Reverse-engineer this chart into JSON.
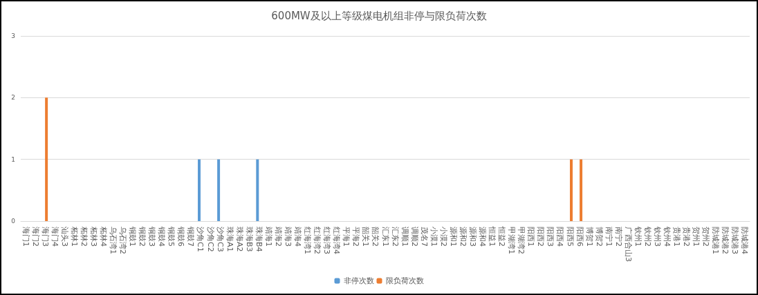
{
  "chart_data": {
    "type": "bar",
    "title": "600MW及以上等级煤电机组非停与限负荷次数",
    "categories": [
      "海门1",
      "海门2",
      "海门3",
      "海门4",
      "汕头3",
      "柘林1",
      "柘林2",
      "柘林3",
      "柘林4",
      "乌石湾1",
      "乌石湾2",
      "铜鼓1",
      "铜鼓2",
      "铜鼓3",
      "铜鼓4",
      "铜鼓5",
      "铜鼓6",
      "铜鼓7",
      "沙角C1",
      "沙角C2",
      "沙角C3",
      "珠海A1",
      "珠海A2",
      "珠海B3",
      "珠海B4",
      "靖海1",
      "靖海2",
      "靖海3",
      "靖海4",
      "红海湾1",
      "红海湾2",
      "红海湾3",
      "红海湾4",
      "平海1",
      "平海2",
      "韶关1",
      "韶关2",
      "汇东1",
      "汇东2",
      "调顺1",
      "调顺2",
      "茂名7",
      "小漠1",
      "小漠2",
      "源和1",
      "源和2",
      "源和3",
      "源和4",
      "恒益1",
      "恒益2",
      "甲湖湾1",
      "甲湖湾2",
      "阳西1",
      "阳西2",
      "阳西3",
      "阳西4",
      "阳西5",
      "阳西6",
      "博贺1",
      "博贺2",
      "南宁1",
      "南宁2",
      "广西合山3",
      "钦州1",
      "钦州2",
      "钦州3",
      "钦州4",
      "贵港1",
      "贵港2",
      "贺州1",
      "贺州2",
      "防城港1",
      "防城港2",
      "防城港3",
      "防城港4"
    ],
    "series": [
      {
        "name": "非停次数",
        "color": "#5b9bd5",
        "values": [
          0,
          0,
          0,
          0,
          0,
          0,
          0,
          0,
          0,
          0,
          0,
          0,
          0,
          0,
          0,
          0,
          0,
          0,
          1,
          0,
          1,
          0,
          0,
          0,
          1,
          0,
          0,
          0,
          0,
          0,
          0,
          0,
          0,
          0,
          0,
          0,
          0,
          0,
          0,
          0,
          0,
          0,
          0,
          0,
          0,
          0,
          0,
          0,
          0,
          0,
          0,
          0,
          0,
          0,
          0,
          0,
          0,
          0,
          0,
          0,
          0,
          0,
          0,
          0,
          0,
          0,
          0,
          0,
          0,
          0,
          0,
          0,
          0,
          0,
          0
        ]
      },
      {
        "name": "限负荷次数",
        "color": "#ed7d31",
        "values": [
          0,
          0,
          2,
          0,
          0,
          0,
          0,
          0,
          0,
          0,
          0,
          0,
          0,
          0,
          0,
          0,
          0,
          0,
          0,
          0,
          0,
          0,
          0,
          0,
          0,
          0,
          0,
          0,
          0,
          0,
          0,
          0,
          0,
          0,
          0,
          0,
          0,
          0,
          0,
          0,
          0,
          0,
          0,
          0,
          0,
          0,
          0,
          0,
          0,
          0,
          0,
          0,
          0,
          0,
          0,
          0,
          1,
          1,
          0,
          0,
          0,
          0,
          0,
          0,
          0,
          0,
          0,
          0,
          0,
          0,
          0,
          0,
          0,
          0,
          0
        ]
      }
    ],
    "ylim": [
      0,
      3
    ],
    "yticks": [
      0,
      1,
      2,
      3
    ],
    "grid": "y",
    "legend": "bottom"
  }
}
